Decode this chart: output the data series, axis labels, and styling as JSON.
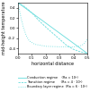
{
  "title": "",
  "xlabel": "horizontal distance",
  "ylabel": "mid-height temperature",
  "xlim": [
    0,
    0.5
  ],
  "ylim": [
    -0.5,
    0.5
  ],
  "yticks": [
    0.4,
    0.2,
    0.0,
    -0.2,
    -0.4
  ],
  "xticks": [
    0.0,
    0.1,
    0.2,
    0.3,
    0.4,
    0.5
  ],
  "line_color": "#70dede",
  "legend": [
    {
      "label": "Conduction regime    (Ra = 10²)",
      "style": "solid"
    },
    {
      "label": "Transition regime      (Ra = 4 · 10⁴)",
      "style": "dashed"
    },
    {
      "label": "Boundary layer regime  (Ra = 6 · 10⁶)",
      "style": "dotted"
    }
  ],
  "conduction_x": [
    0.0,
    0.1,
    0.2,
    0.3,
    0.4,
    0.5
  ],
  "conduction_y": [
    0.5,
    0.3,
    0.1,
    -0.1,
    -0.3,
    -0.5
  ],
  "transition_x": [
    0.0,
    0.05,
    0.1,
    0.15,
    0.2,
    0.25,
    0.3,
    0.35,
    0.4,
    0.45,
    0.5
  ],
  "transition_y": [
    0.5,
    0.42,
    0.3,
    0.15,
    0.02,
    -0.1,
    -0.22,
    -0.34,
    -0.42,
    -0.47,
    -0.5
  ],
  "boundary_x": [
    0.0,
    0.02,
    0.04,
    0.06,
    0.08,
    0.12,
    0.2,
    0.3,
    0.4,
    0.44,
    0.46,
    0.48,
    0.5
  ],
  "boundary_y": [
    0.5,
    0.22,
    0.0,
    -0.15,
    -0.25,
    -0.32,
    -0.36,
    -0.37,
    -0.37,
    -0.36,
    -0.34,
    -0.3,
    -0.22
  ],
  "background_color": "#ffffff",
  "font_size": 3.5,
  "tick_size": 3.0,
  "legend_font_size": 2.5
}
